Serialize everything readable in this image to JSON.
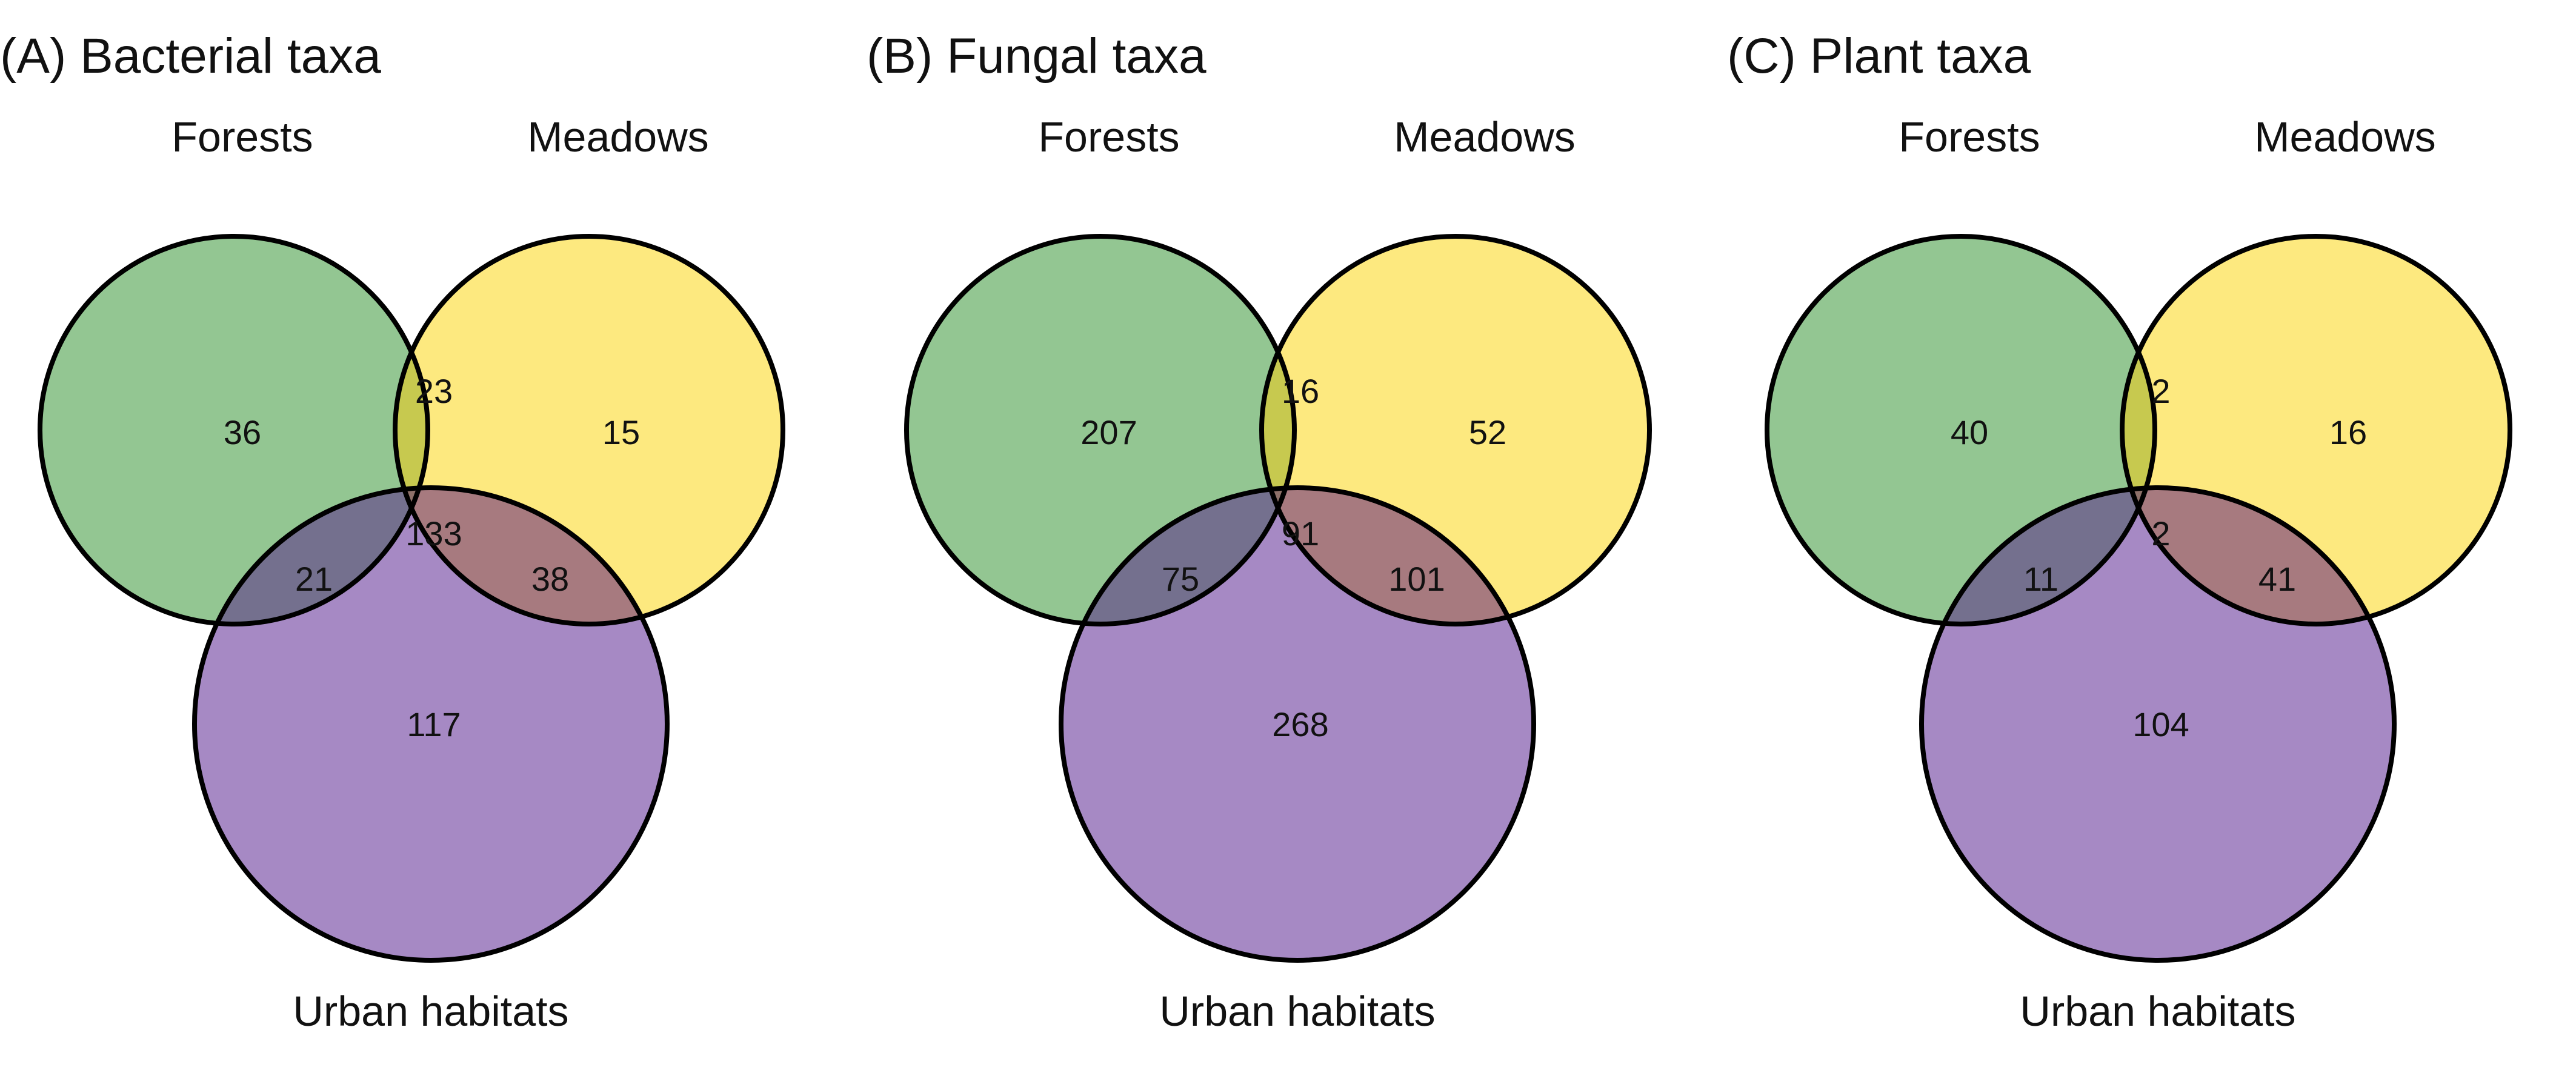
{
  "colors": {
    "forests": "#93c692",
    "meadows": "#fde97f",
    "urban": "#a689c4",
    "forests_meadows": "#c7c94f",
    "forests_urban": "#74708e",
    "meadows_urban": "#a77a7f",
    "all_three": "#8d7069",
    "outline": "#000000"
  },
  "panels": [
    {
      "title": "(A) Bacterial taxa",
      "labels": {
        "forests": "Forests",
        "meadows": "Meadows",
        "urban": "Urban habitats"
      },
      "counts": {
        "forests_only": "36",
        "meadows_only": "15",
        "urban_only": "117",
        "forests_meadows": "23",
        "forests_urban": "21",
        "meadows_urban": "38",
        "all_three": "133"
      }
    },
    {
      "title": "(B) Fungal taxa",
      "labels": {
        "forests": "Forests",
        "meadows": "Meadows",
        "urban": "Urban habitats"
      },
      "counts": {
        "forests_only": "207",
        "meadows_only": "52",
        "urban_only": "268",
        "forests_meadows": "16",
        "forests_urban": "75",
        "meadows_urban": "101",
        "all_three": "91"
      }
    },
    {
      "title": "(C) Plant taxa",
      "labels": {
        "forests": "Forests",
        "meadows": "Meadows",
        "urban": "Urban habitats"
      },
      "counts": {
        "forests_only": "40",
        "meadows_only": "16",
        "urban_only": "104",
        "forests_meadows": "2",
        "forests_urban": "11",
        "meadows_urban": "41",
        "all_three": "2"
      }
    }
  ]
}
